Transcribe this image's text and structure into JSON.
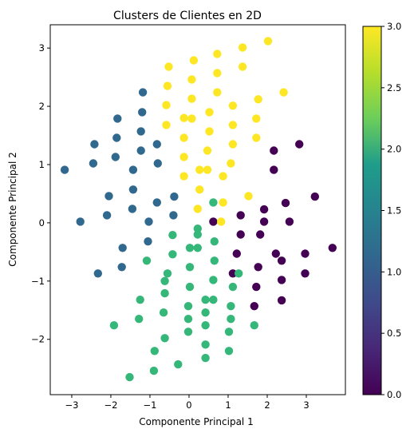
{
  "chart_data": {
    "type": "scatter",
    "title": "Clusters de Clientes en 2D",
    "xlabel": "Componente Principal 1",
    "ylabel": "Componente Principal 2",
    "xlim": [
      -3.55,
      4.0
    ],
    "ylim": [
      -2.95,
      3.4
    ],
    "xticks": [
      -3,
      -2,
      -1,
      0,
      1,
      2,
      3
    ],
    "yticks": [
      -2,
      -1,
      0,
      1,
      2,
      3
    ],
    "xtick_labels": [
      "−3",
      "−2",
      "−1",
      "0",
      "1",
      "2",
      "3"
    ],
    "ytick_labels": [
      "−2",
      "−1",
      "0",
      "1",
      "2",
      "3"
    ],
    "grid": false,
    "colormap": "viridis",
    "colorbar": {
      "range": [
        0.0,
        3.0
      ],
      "ticks": [
        0.0,
        0.5,
        1.0,
        1.5,
        2.0,
        2.5,
        3.0
      ],
      "tick_labels": [
        "0.0",
        "0.5",
        "1.0",
        "1.5",
        "2.0",
        "2.5",
        "3.0"
      ],
      "stops": [
        "#440154",
        "#482777",
        "#3f4a8a",
        "#31678e",
        "#26838f",
        "#1f9d8a",
        "#6cce5a",
        "#b6de2b",
        "#fee825"
      ]
    },
    "cluster_colors": {
      "0": "#440154",
      "1": "#31688e",
      "2": "#35b779",
      "3": "#fde725"
    },
    "points": [
      {
        "x": 0.62,
        "y": 0.02,
        "c": 0
      },
      {
        "x": 1.32,
        "y": 0.13,
        "c": 0
      },
      {
        "x": 1.92,
        "y": 0.23,
        "c": 0
      },
      {
        "x": 2.47,
        "y": 0.34,
        "c": 0
      },
      {
        "x": 3.22,
        "y": 0.45,
        "c": 0
      },
      {
        "x": 1.32,
        "y": -0.2,
        "c": 0
      },
      {
        "x": 1.92,
        "y": 0.02,
        "c": 0
      },
      {
        "x": 2.57,
        "y": 0.02,
        "c": 0
      },
      {
        "x": 1.82,
        "y": -0.2,
        "c": 0
      },
      {
        "x": 3.67,
        "y": -0.43,
        "c": 0
      },
      {
        "x": 1.22,
        "y": -0.53,
        "c": 0
      },
      {
        "x": 2.22,
        "y": -0.53,
        "c": 0
      },
      {
        "x": 2.97,
        "y": -0.53,
        "c": 0
      },
      {
        "x": 1.77,
        "y": -0.76,
        "c": 0
      },
      {
        "x": 2.37,
        "y": -0.65,
        "c": 0
      },
      {
        "x": 1.12,
        "y": -0.87,
        "c": 0
      },
      {
        "x": 2.37,
        "y": -0.98,
        "c": 0
      },
      {
        "x": 2.97,
        "y": -0.87,
        "c": 0
      },
      {
        "x": 1.72,
        "y": -1.1,
        "c": 0
      },
      {
        "x": 2.37,
        "y": -1.33,
        "c": 0
      },
      {
        "x": 1.67,
        "y": -1.43,
        "c": 0
      },
      {
        "x": 2.17,
        "y": 1.24,
        "c": 0
      },
      {
        "x": 2.82,
        "y": 1.35,
        "c": 0
      },
      {
        "x": 2.17,
        "y": 0.91,
        "c": 0
      },
      {
        "x": -1.18,
        "y": 2.24,
        "c": 1
      },
      {
        "x": -1.2,
        "y": 1.9,
        "c": 1
      },
      {
        "x": -1.83,
        "y": 1.79,
        "c": 1
      },
      {
        "x": -1.23,
        "y": 1.57,
        "c": 1
      },
      {
        "x": -2.42,
        "y": 1.35,
        "c": 1
      },
      {
        "x": -1.85,
        "y": 1.46,
        "c": 1
      },
      {
        "x": -1.23,
        "y": 1.24,
        "c": 1
      },
      {
        "x": -0.82,
        "y": 1.35,
        "c": 1
      },
      {
        "x": -1.88,
        "y": 1.13,
        "c": 1
      },
      {
        "x": -3.18,
        "y": 0.91,
        "c": 1
      },
      {
        "x": -2.45,
        "y": 1.02,
        "c": 1
      },
      {
        "x": -1.43,
        "y": 0.91,
        "c": 1
      },
      {
        "x": -0.8,
        "y": 1.02,
        "c": 1
      },
      {
        "x": -1.43,
        "y": 0.57,
        "c": 1
      },
      {
        "x": -0.38,
        "y": 0.45,
        "c": 1
      },
      {
        "x": -2.05,
        "y": 0.46,
        "c": 1
      },
      {
        "x": -0.82,
        "y": 0.35,
        "c": 1
      },
      {
        "x": -1.45,
        "y": 0.24,
        "c": 1
      },
      {
        "x": -2.1,
        "y": 0.13,
        "c": 1
      },
      {
        "x": -0.4,
        "y": 0.13,
        "c": 1
      },
      {
        "x": -2.78,
        "y": 0.02,
        "c": 1
      },
      {
        "x": -1.03,
        "y": 0.02,
        "c": 1
      },
      {
        "x": -1.05,
        "y": -0.32,
        "c": 1
      },
      {
        "x": -1.7,
        "y": -0.43,
        "c": 1
      },
      {
        "x": -1.72,
        "y": -0.76,
        "c": 1
      },
      {
        "x": -2.33,
        "y": -0.87,
        "c": 1
      },
      {
        "x": -0.42,
        "y": -0.21,
        "c": 2
      },
      {
        "x": 0.22,
        "y": -0.1,
        "c": 2
      },
      {
        "x": 0.02,
        "y": -0.43,
        "c": 2
      },
      {
        "x": 0.22,
        "y": -0.43,
        "c": 2
      },
      {
        "x": 0.65,
        "y": -0.32,
        "c": 2
      },
      {
        "x": -0.42,
        "y": -0.54,
        "c": 2
      },
      {
        "x": -1.08,
        "y": -0.65,
        "c": 2
      },
      {
        "x": 0.65,
        "y": -0.65,
        "c": 2
      },
      {
        "x": 0.02,
        "y": -0.76,
        "c": 2
      },
      {
        "x": -0.55,
        "y": -0.87,
        "c": 2
      },
      {
        "x": 1.27,
        "y": -0.87,
        "c": 2
      },
      {
        "x": -0.62,
        "y": -1.0,
        "c": 2
      },
      {
        "x": 0.62,
        "y": -0.98,
        "c": 2
      },
      {
        "x": 0.02,
        "y": -1.1,
        "c": 2
      },
      {
        "x": 1.12,
        "y": -1.1,
        "c": 2
      },
      {
        "x": -0.62,
        "y": -1.21,
        "c": 2
      },
      {
        "x": -1.25,
        "y": -1.32,
        "c": 2
      },
      {
        "x": 0.42,
        "y": -1.32,
        "c": 2
      },
      {
        "x": 0.62,
        "y": -1.32,
        "c": 2
      },
      {
        "x": -0.02,
        "y": -1.43,
        "c": 2
      },
      {
        "x": 1.07,
        "y": -1.43,
        "c": 2
      },
      {
        "x": -0.65,
        "y": -1.54,
        "c": 2
      },
      {
        "x": 0.42,
        "y": -1.54,
        "c": 2
      },
      {
        "x": -1.28,
        "y": -1.65,
        "c": 2
      },
      {
        "x": -0.02,
        "y": -1.65,
        "c": 2
      },
      {
        "x": 1.07,
        "y": -1.65,
        "c": 2
      },
      {
        "x": -1.92,
        "y": -1.76,
        "c": 2
      },
      {
        "x": 0.42,
        "y": -1.76,
        "c": 2
      },
      {
        "x": 1.67,
        "y": -1.76,
        "c": 2
      },
      {
        "x": -0.02,
        "y": -1.87,
        "c": 2
      },
      {
        "x": 1.02,
        "y": -1.87,
        "c": 2
      },
      {
        "x": -0.62,
        "y": -1.98,
        "c": 2
      },
      {
        "x": 0.42,
        "y": -2.09,
        "c": 2
      },
      {
        "x": -0.88,
        "y": -2.2,
        "c": 2
      },
      {
        "x": 1.02,
        "y": -2.2,
        "c": 2
      },
      {
        "x": 0.42,
        "y": -2.32,
        "c": 2
      },
      {
        "x": -0.28,
        "y": -2.43,
        "c": 2
      },
      {
        "x": -0.9,
        "y": -2.54,
        "c": 2
      },
      {
        "x": -1.52,
        "y": -2.65,
        "c": 2
      },
      {
        "x": 0.62,
        "y": 0.35,
        "c": 2
      },
      {
        "x": 0.22,
        "y": -0.2,
        "c": 2
      },
      {
        "x": 2.02,
        "y": 3.12,
        "c": 3
      },
      {
        "x": 1.37,
        "y": 3.01,
        "c": 3
      },
      {
        "x": 0.72,
        "y": 2.9,
        "c": 3
      },
      {
        "x": 0.12,
        "y": 2.79,
        "c": 3
      },
      {
        "x": 1.37,
        "y": 2.68,
        "c": 3
      },
      {
        "x": -0.52,
        "y": 2.68,
        "c": 3
      },
      {
        "x": 0.72,
        "y": 2.57,
        "c": 3
      },
      {
        "x": 0.07,
        "y": 2.46,
        "c": 3
      },
      {
        "x": -0.55,
        "y": 2.35,
        "c": 3
      },
      {
        "x": 0.72,
        "y": 2.24,
        "c": 3
      },
      {
        "x": 2.42,
        "y": 2.24,
        "c": 3
      },
      {
        "x": 0.07,
        "y": 2.13,
        "c": 3
      },
      {
        "x": 1.77,
        "y": 2.12,
        "c": 3
      },
      {
        "x": -0.58,
        "y": 2.02,
        "c": 3
      },
      {
        "x": 1.12,
        "y": 2.01,
        "c": 3
      },
      {
        "x": 0.52,
        "y": 1.9,
        "c": 3
      },
      {
        "x": -0.13,
        "y": 1.8,
        "c": 3
      },
      {
        "x": 0.07,
        "y": 1.79,
        "c": 3
      },
      {
        "x": 1.72,
        "y": 1.79,
        "c": 3
      },
      {
        "x": -0.58,
        "y": 1.68,
        "c": 3
      },
      {
        "x": 1.12,
        "y": 1.68,
        "c": 3
      },
      {
        "x": 0.52,
        "y": 1.57,
        "c": 3
      },
      {
        "x": -0.13,
        "y": 1.46,
        "c": 3
      },
      {
        "x": 1.72,
        "y": 1.46,
        "c": 3
      },
      {
        "x": 1.12,
        "y": 1.35,
        "c": 3
      },
      {
        "x": 0.47,
        "y": 1.24,
        "c": 3
      },
      {
        "x": -0.13,
        "y": 1.13,
        "c": 3
      },
      {
        "x": 1.07,
        "y": 1.02,
        "c": 3
      },
      {
        "x": 0.27,
        "y": 0.91,
        "c": 3
      },
      {
        "x": 0.47,
        "y": 0.91,
        "c": 3
      },
      {
        "x": -0.13,
        "y": 0.8,
        "c": 3
      },
      {
        "x": 0.87,
        "y": 0.8,
        "c": 3
      },
      {
        "x": 0.27,
        "y": 0.57,
        "c": 3
      },
      {
        "x": 1.52,
        "y": 0.46,
        "c": 3
      },
      {
        "x": 0.87,
        "y": 0.35,
        "c": 3
      },
      {
        "x": 0.22,
        "y": 0.24,
        "c": 3
      },
      {
        "x": 0.82,
        "y": 0.02,
        "c": 3
      }
    ]
  }
}
